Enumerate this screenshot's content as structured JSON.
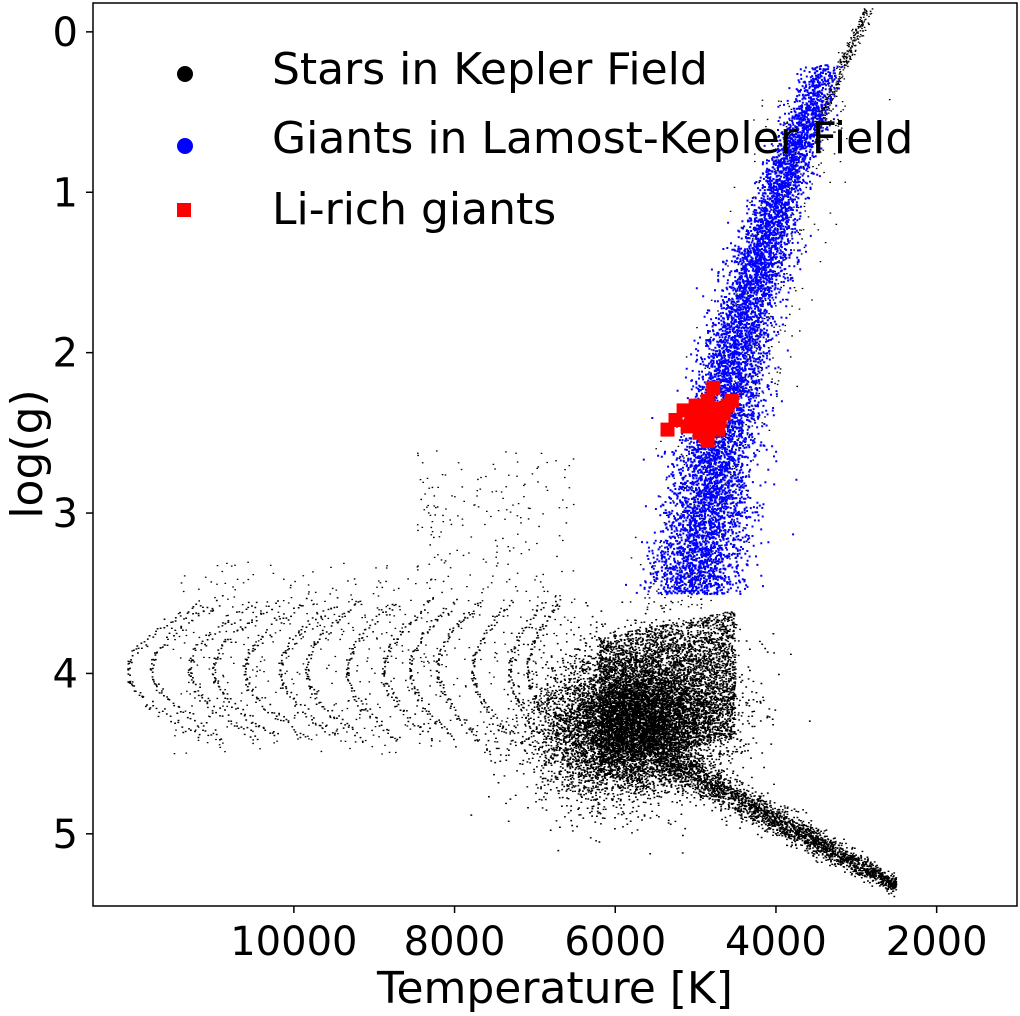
{
  "chart_data": {
    "type": "scatter",
    "xlabel": "Temperature [K]",
    "ylabel": "log(g)",
    "xlim": [
      12500,
      1000
    ],
    "ylim": [
      5.45,
      -0.18
    ],
    "x_inverted": true,
    "y_inverted": true,
    "grid": false,
    "legend_position": "top-right",
    "x_ticks": [
      {
        "value": 10000,
        "label": "10000"
      },
      {
        "value": 8000,
        "label": "8000"
      },
      {
        "value": 6000,
        "label": "6000"
      },
      {
        "value": 4000,
        "label": "4000"
      },
      {
        "value": 2000,
        "label": "2000"
      }
    ],
    "y_ticks": [
      {
        "value": 0,
        "label": "0"
      },
      {
        "value": 1,
        "label": "1"
      },
      {
        "value": 2,
        "label": "2"
      },
      {
        "value": 3,
        "label": "3"
      },
      {
        "value": 4,
        "label": "4"
      },
      {
        "value": 5,
        "label": "5"
      }
    ],
    "series": [
      {
        "name": "Stars in Kepler Field",
        "color": "#000000",
        "marker": "circle",
        "distribution": {
          "main_sequence_core": {
            "teff_center": 5800,
            "teff_sd": 550,
            "logg_center": 4.3,
            "logg_sd": 0.22
          },
          "subgiant_fan": {
            "teff_range": [
              11500,
              6500
            ],
            "logg_range": [
              3.5,
              4.45
            ]
          },
          "lower_main_sequence": {
            "teff_range": [
              5500,
              2500
            ],
            "logg_range": [
              4.5,
              5.32
            ]
          },
          "giant_branch_tip": {
            "teff_range": [
              3500,
              2850
            ],
            "logg_range": [
              0.6,
              -0.15
            ]
          }
        }
      },
      {
        "name": "Giants in Lamost-Kepler Field",
        "color": "#0000ff",
        "marker": "circle",
        "distribution": {
          "red_giant_branch": [
            {
              "logg": 3.5,
              "teff": 5050
            },
            {
              "logg": 3.0,
              "teff": 4850
            },
            {
              "logg": 2.5,
              "teff": 4700
            },
            {
              "logg": 2.0,
              "teff": 4500
            },
            {
              "logg": 1.5,
              "teff": 4250
            },
            {
              "logg": 1.0,
              "teff": 3950
            },
            {
              "logg": 0.5,
              "teff": 3600
            },
            {
              "logg": 0.2,
              "teff": 3400
            }
          ]
        }
      },
      {
        "name": "Li-rich giants",
        "color": "#ff0000",
        "marker": "square",
        "points": [
          {
            "teff": 5350,
            "logg": 2.48
          },
          {
            "teff": 5250,
            "logg": 2.42
          },
          {
            "teff": 5150,
            "logg": 2.36
          },
          {
            "teff": 5100,
            "logg": 2.46
          },
          {
            "teff": 5050,
            "logg": 2.4
          },
          {
            "teff": 5000,
            "logg": 2.33
          },
          {
            "teff": 4950,
            "logg": 2.44
          },
          {
            "teff": 4900,
            "logg": 2.38
          },
          {
            "teff": 4880,
            "logg": 2.52
          },
          {
            "teff": 4850,
            "logg": 2.3
          },
          {
            "teff": 4820,
            "logg": 2.45
          },
          {
            "teff": 4800,
            "logg": 2.4
          },
          {
            "teff": 4780,
            "logg": 2.22
          },
          {
            "teff": 4750,
            "logg": 2.35
          },
          {
            "teff": 4720,
            "logg": 2.48
          },
          {
            "teff": 4700,
            "logg": 2.42
          },
          {
            "teff": 4650,
            "logg": 2.38
          },
          {
            "teff": 4600,
            "logg": 2.33
          },
          {
            "teff": 4550,
            "logg": 2.3
          },
          {
            "teff": 4950,
            "logg": 2.5
          },
          {
            "teff": 5050,
            "logg": 2.45
          },
          {
            "teff": 4850,
            "logg": 2.55
          }
        ]
      }
    ]
  }
}
